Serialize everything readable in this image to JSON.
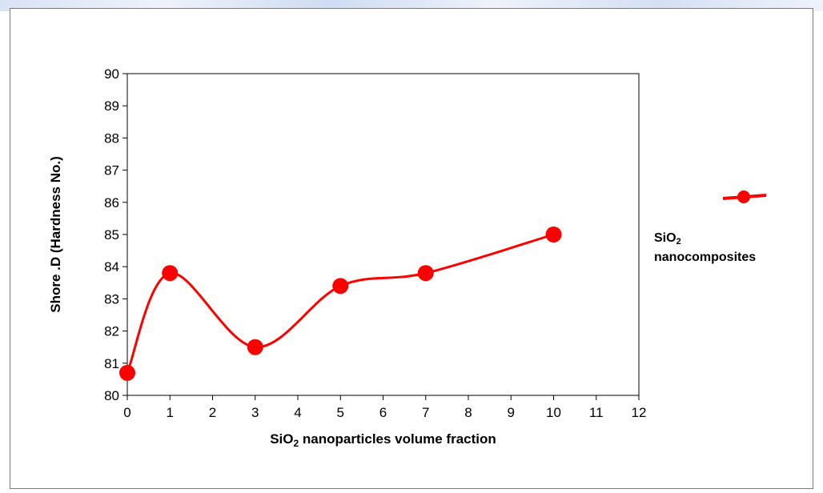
{
  "colors": {
    "series": "#ff0000",
    "axis": "#000000"
  },
  "chart_data": {
    "type": "line",
    "smooth": true,
    "grid": false,
    "legend_placement": "right",
    "xlabel_main": "SiO",
    "xlabel_sub": "2",
    "xlabel_rest": " nanoparticles volume fraction",
    "ylabel": "Shore .D (Hardness  No.)",
    "xlim": [
      0,
      12
    ],
    "ylim": [
      80,
      90
    ],
    "x_ticks": [
      "0",
      "1",
      "2",
      "3",
      "4",
      "5",
      "6",
      "7",
      "8",
      "9",
      "10",
      "11",
      "12"
    ],
    "y_ticks": [
      "80",
      "81",
      "82",
      "83",
      "84",
      "85",
      "86",
      "87",
      "88",
      "89",
      "90"
    ],
    "series": [
      {
        "name_main": "SiO",
        "name_sub": "2",
        "name_rest": "nanocomposites",
        "x": [
          0,
          1,
          3,
          5,
          7,
          10
        ],
        "y": [
          80.7,
          83.8,
          81.5,
          83.4,
          83.8,
          85.0
        ]
      }
    ]
  }
}
